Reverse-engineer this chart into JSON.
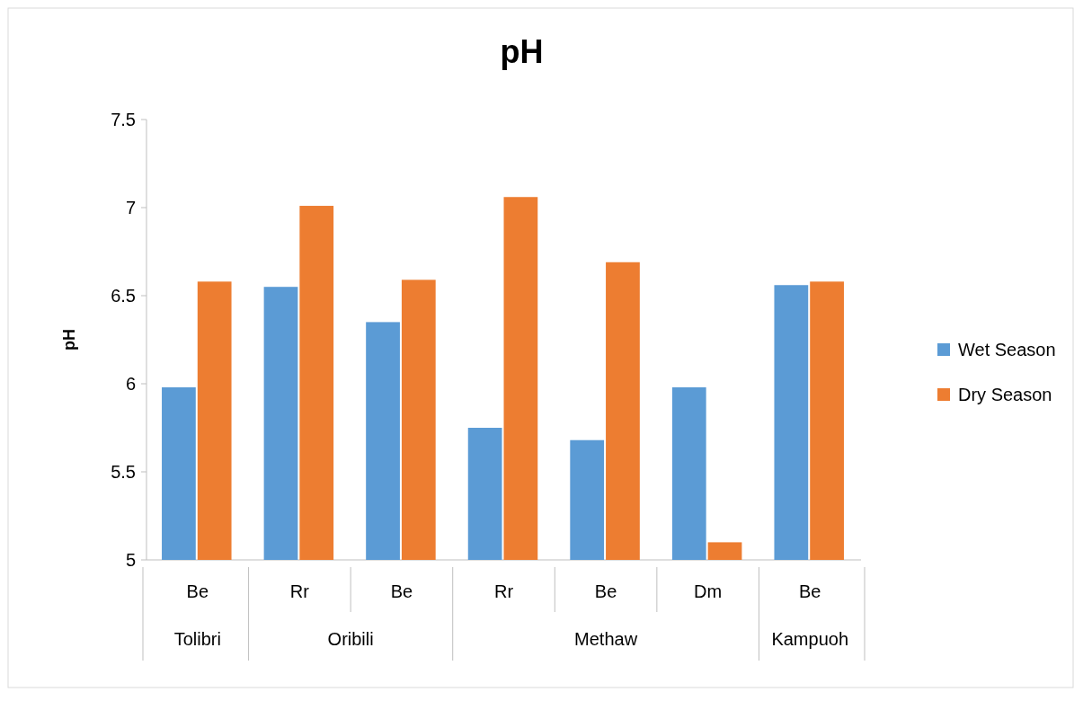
{
  "chart_data": {
    "type": "bar",
    "title": "pH",
    "ylabel": "pH",
    "categories": [
      "Be",
      "Rr",
      "Be",
      "Rr",
      "Be",
      "Dm",
      "Be"
    ],
    "series": [
      {
        "name": "Wet Season",
        "color": "#5b9bd5",
        "values": [
          5.98,
          6.55,
          6.35,
          5.75,
          5.68,
          5.98,
          6.56
        ]
      },
      {
        "name": "Dry Season",
        "color": "#ed7d31",
        "values": [
          6.58,
          7.01,
          6.59,
          7.06,
          6.69,
          5.1,
          6.58
        ]
      }
    ],
    "annotations": [
      "Tolibri",
      "Oribili",
      "Methaw",
      "Kampuoh"
    ],
    "ylim": [
      5,
      7.5
    ],
    "yticks": [
      5,
      5.5,
      6,
      6.5,
      7,
      7.5
    ],
    "grid": false,
    "legend": "right"
  }
}
